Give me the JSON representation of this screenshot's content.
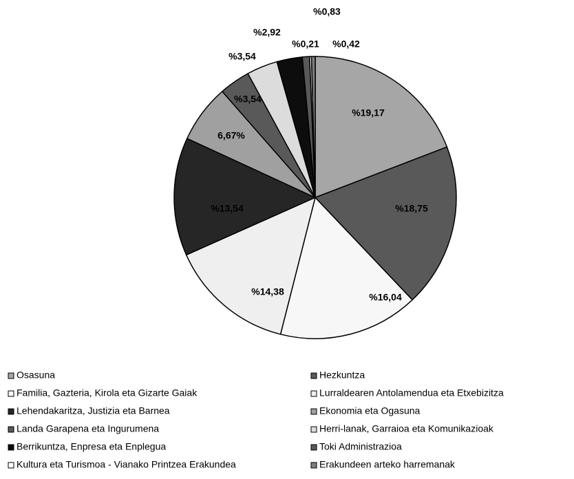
{
  "chart_data": {
    "type": "pie",
    "categories": [
      "Osasuna",
      "Hezkuntza",
      "Familia, Gazteria, Kirola eta Gizarte Gaiak",
      "Lurraldearen Antolamendua eta Etxebizitza",
      "Lehendakaritza, Justizia eta Barnea",
      "Ekonomia eta Ogasuna",
      "Landa Garapena eta Ingurumena",
      "Herri-lanak, Garraioa eta Komunikazioak",
      "Berrikuntza, Enpresa eta Enplegua",
      "Toki Administrazioa",
      "Kultura eta Turismoa - Vianako Printzea Erakundea",
      "Erakundeen arteko harremanak"
    ],
    "values": [
      19.17,
      18.75,
      16.04,
      14.38,
      13.54,
      6.67,
      3.54,
      3.54,
      2.92,
      0.83,
      0.21,
      0.42
    ],
    "value_labels": [
      "%19,17",
      "%18,75",
      "%16,04",
      "%14,38",
      "%13,54",
      "6,67%",
      "%3,54",
      "%3,54",
      "%2,92",
      "%0,83",
      "%0,21",
      "%0,42"
    ],
    "colors": [
      "#a6a6a6",
      "#595959",
      "#f7f7f7",
      "#efefef",
      "#262626",
      "#a0a0a0",
      "#595959",
      "#dcdcdc",
      "#0d0d0d",
      "#595959",
      "#ffffff",
      "#808080"
    ]
  }
}
